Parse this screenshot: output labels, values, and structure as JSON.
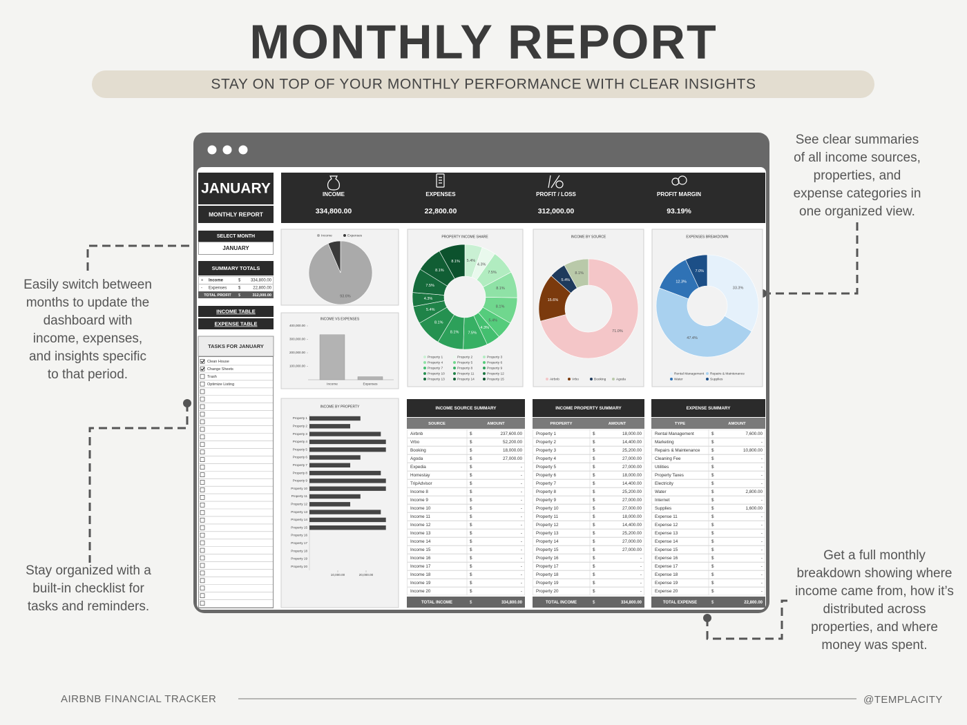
{
  "header": {
    "title": "MONTHLY REPORT",
    "subtitle": "STAY ON TOP OF YOUR MONTHLY PERFORMANCE WITH CLEAR INSIGHTS"
  },
  "callouts": [
    {
      "lines": [
        "See clear summaries",
        "of all income sources,",
        "properties, and",
        "expense categories in",
        "one organized view."
      ]
    },
    {
      "lines": [
        "Easily switch between",
        "months to update the",
        "dashboard with",
        "income, expenses,",
        "and insights specific",
        "to that period."
      ]
    },
    {
      "lines": [
        "Stay organized with a",
        "built-in checklist for",
        "tasks and reminders."
      ]
    },
    {
      "lines": [
        "Get a full monthly",
        "breakdown showing where",
        "income came from, how it’s",
        "distributed across",
        "properties, and where",
        "money was spent."
      ]
    }
  ],
  "footer": {
    "left": "AIRBNB FINANCIAL TRACKER",
    "right": "@TEMPLACITY"
  },
  "sidebar": {
    "month": "JANUARY",
    "report_label": "MONTHLY REPORT",
    "select_month": {
      "label": "SELECT MONTH",
      "value": "JANUARY"
    },
    "summary": {
      "title": "SUMMARY TOTALS",
      "currency": "$",
      "rows": [
        {
          "sign": "+",
          "label": "Income",
          "amount": "334,800.00"
        },
        {
          "sign": "-",
          "label": "Expenses",
          "amount": "22,800.00"
        }
      ],
      "total": {
        "label": "TOTAL PROFIT",
        "amount": "312,000.00"
      }
    },
    "links": [
      "INCOME TABLE",
      "EXPENSE TABLE"
    ],
    "tasks": {
      "title": "TASKS FOR JANUARY",
      "items": [
        {
          "label": "Clean House",
          "checked": true
        },
        {
          "label": "Change Sheets",
          "checked": true
        },
        {
          "label": "Trash",
          "checked": false
        },
        {
          "label": "Optimize Listing",
          "checked": false
        }
      ]
    }
  },
  "kpis": [
    {
      "label": "INCOME",
      "value": "334,800.00"
    },
    {
      "label": "EXPENSES",
      "value": "22,800.00"
    },
    {
      "label": "PROFIT / LOSS",
      "value": "312,000.00"
    },
    {
      "label": "PROFIT MARGIN",
      "value": "93.19%"
    }
  ],
  "chart_data": [
    {
      "type": "pie",
      "categories": [
        "Income",
        "Expenses"
      ],
      "values": [
        93.6,
        6.4
      ],
      "value_labels": [
        "93.6%",
        null
      ],
      "colors": [
        "#aaaaaa",
        "#3a3a3a"
      ],
      "legend": "top"
    },
    {
      "type": "bar",
      "title": "INCOME VS EXPENSES",
      "categories": [
        "Income",
        "Expenses"
      ],
      "values": [
        334800,
        22800
      ],
      "color": "#b3b3b3",
      "ylim": [
        0,
        400000
      ],
      "yticks": [
        {
          "value": 100000,
          "label": "100,000.00"
        },
        {
          "value": 200000,
          "label": "200,000.00"
        },
        {
          "value": 300000,
          "label": "300,000.00"
        },
        {
          "value": 400000,
          "label": "400,000.00"
        }
      ]
    },
    {
      "type": "donut",
      "title": "PROPERTY INCOME SHARE",
      "categories": [
        "Property 1",
        "Property 2",
        "Property 3",
        "Property 4",
        "Property 5",
        "Property 6",
        "Property 7",
        "Property 8",
        "Property 9",
        "Property 10",
        "Property 11",
        "Property 12",
        "Property 13",
        "Property 14",
        "Property 15"
      ],
      "values": [
        5.4,
        4.3,
        7.5,
        8.1,
        8.1,
        5.4,
        4.3,
        7.5,
        8.1,
        8.1,
        5.4,
        4.3,
        7.5,
        8.1,
        8.1
      ],
      "value_labels": [
        "5.4%",
        "4.3%",
        "7.5%",
        "8.1%",
        "8.1%",
        "5.4%",
        "4.3%",
        "7.5%",
        "8.1%",
        "8.1%",
        "5.4%",
        "4.3%",
        "7.5%",
        "8.1%",
        "8.1%"
      ],
      "colors": [
        "#c9f0d3",
        "#e9f9ed",
        "#b1ecc0",
        "#8fe2a6",
        "#70d78e",
        "#55cc7c",
        "#43bf6f",
        "#37b064",
        "#2da05a",
        "#259150",
        "#1f8348",
        "#1a7641",
        "#156a3b",
        "#115e34",
        "#0c522d"
      ],
      "legend": "bottom"
    },
    {
      "type": "donut",
      "title": "INCOME BY SOURCE",
      "categories": [
        "Airbnb",
        "Vrbo",
        "Booking",
        "Agoda"
      ],
      "values": [
        71.0,
        15.6,
        5.4,
        8.1
      ],
      "value_labels": [
        "71.0%",
        "15.6%",
        "5.4%",
        "8.1%"
      ],
      "colors": [
        "#f4c6c8",
        "#7b3a0d",
        "#1e3a5c",
        "#b9c9a9"
      ],
      "legend": "bottom"
    },
    {
      "type": "donut",
      "title": "EXPENSES BREAKDOWN",
      "categories": [
        "Rental Management",
        "Repairs & Maintenance",
        "Water",
        "Supplies"
      ],
      "values": [
        33.3,
        47.4,
        12.3,
        7.0
      ],
      "value_labels": [
        "33.3%",
        "47.4%",
        "12.3%",
        "7.0%"
      ],
      "colors": [
        "#e5f1fb",
        "#a9d1ef",
        "#2f72b5",
        "#1c4f87"
      ],
      "legend": "bottom"
    },
    {
      "type": "hbar",
      "title": "INCOME BY PROPERTY",
      "categories": [
        "Property 1",
        "Property 2",
        "Property 3",
        "Property 4",
        "Property 5",
        "Property 6",
        "Property 7",
        "Property 8",
        "Property 9",
        "Property 10",
        "Property 11",
        "Property 12",
        "Property 13",
        "Property 14",
        "Property 15",
        "Property 16",
        "Property 17",
        "Property 18",
        "Property 19",
        "Property 20"
      ],
      "values": [
        18000,
        14400,
        25200,
        27000,
        27000,
        18000,
        14400,
        25200,
        27000,
        27000,
        18000,
        14400,
        25200,
        27000,
        27000,
        0,
        0,
        0,
        0,
        0
      ],
      "color": "#454545",
      "xlim": [
        0,
        30000
      ],
      "xticks": [
        {
          "value": 10000,
          "label": "10,000.00"
        },
        {
          "value": 20000,
          "label": "20,000.00"
        }
      ]
    }
  ],
  "tables": [
    {
      "title": "INCOME SOURCE SUMMARY",
      "columns": [
        "SOURCE",
        "AMOUNT"
      ],
      "currency": "$",
      "rows": [
        [
          "Airbnb",
          "237,600.00"
        ],
        [
          "Vrbo",
          "52,200.00"
        ],
        [
          "Booking",
          "18,000.00"
        ],
        [
          "Agoda",
          "27,000.00"
        ],
        [
          "Expedia",
          "-"
        ],
        [
          "Homestay",
          "-"
        ],
        [
          "TripAdvisor",
          "-"
        ],
        [
          "Income 8",
          "-"
        ],
        [
          "Income 9",
          "-"
        ],
        [
          "Income 10",
          "-"
        ],
        [
          "Income 11",
          "-"
        ],
        [
          "Income 12",
          "-"
        ],
        [
          "Income 13",
          "-"
        ],
        [
          "Income 14",
          "-"
        ],
        [
          "Income 15",
          "-"
        ],
        [
          "Income 16",
          "-"
        ],
        [
          "Income 17",
          "-"
        ],
        [
          "Income 18",
          "-"
        ],
        [
          "Income 19",
          "-"
        ],
        [
          "Income 20",
          "-"
        ]
      ],
      "total": {
        "label": "TOTAL INCOME",
        "amount": "334,800.00"
      }
    },
    {
      "title": "INCOME PROPERTY SUMMARY",
      "columns": [
        "PROPERTY",
        "AMOUNT"
      ],
      "currency": "$",
      "rows": [
        [
          "Property 1",
          "18,000.00"
        ],
        [
          "Property 2",
          "14,400.00"
        ],
        [
          "Property 3",
          "25,200.00"
        ],
        [
          "Property 4",
          "27,000.00"
        ],
        [
          "Property 5",
          "27,000.00"
        ],
        [
          "Property 6",
          "18,000.00"
        ],
        [
          "Property 7",
          "14,400.00"
        ],
        [
          "Property 8",
          "25,200.00"
        ],
        [
          "Property 9",
          "27,000.00"
        ],
        [
          "Property 10",
          "27,000.00"
        ],
        [
          "Property 11",
          "18,000.00"
        ],
        [
          "Property 12",
          "14,400.00"
        ],
        [
          "Property 13",
          "25,200.00"
        ],
        [
          "Property 14",
          "27,000.00"
        ],
        [
          "Property 15",
          "27,000.00"
        ],
        [
          "Property 16",
          "-"
        ],
        [
          "Property 17",
          "-"
        ],
        [
          "Property 18",
          "-"
        ],
        [
          "Property 19",
          "-"
        ],
        [
          "Property 20",
          "-"
        ]
      ],
      "total": {
        "label": "TOTAL INCOME",
        "amount": "334,800.00"
      }
    },
    {
      "title": "EXPENSE SUMMARY",
      "columns": [
        "TYPE",
        "AMOUNT"
      ],
      "currency": "$",
      "rows": [
        [
          "Rental Management",
          "7,600.00"
        ],
        [
          "Marketing",
          "-"
        ],
        [
          "Repairs & Maintenance",
          "10,800.00"
        ],
        [
          "Cleaning Fee",
          "-"
        ],
        [
          "Utilities",
          "-"
        ],
        [
          "Property Taxes",
          "-"
        ],
        [
          "Electricity",
          "-"
        ],
        [
          "Water",
          "2,800.00"
        ],
        [
          "Internet",
          "-"
        ],
        [
          "Supplies",
          "1,600.00"
        ],
        [
          "Expense 11",
          "-"
        ],
        [
          "Expense 12",
          "-"
        ],
        [
          "Expense 13",
          "-"
        ],
        [
          "Expense 14",
          "-"
        ],
        [
          "Expense 15",
          "-"
        ],
        [
          "Expense 16",
          "-"
        ],
        [
          "Expense 17",
          "-"
        ],
        [
          "Expense 18",
          "-"
        ],
        [
          "Expense 19",
          "-"
        ],
        [
          "Expense 20",
          "-"
        ]
      ],
      "total": {
        "label": "TOTAL EXPENSE",
        "amount": "22,800.00"
      }
    }
  ]
}
